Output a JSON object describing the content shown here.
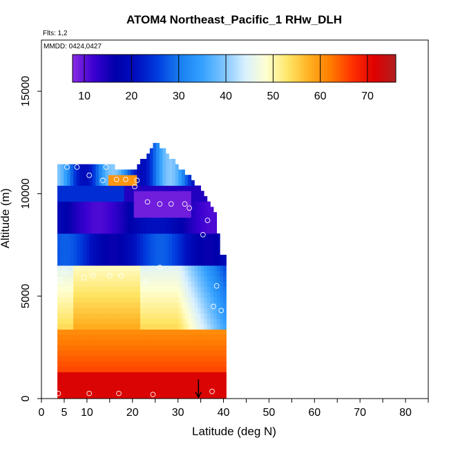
{
  "chart_data": {
    "type": "heatmap",
    "title": "ATOM4 Northeast_Pacific_1 RHw_DLH",
    "subtitle_flights": "Flts: 1,2",
    "subtitle_dates": "MMDD: 0424,0427",
    "xlabel": "Latitude (deg N)",
    "ylabel": "Altitude (m)",
    "xlim": [
      0,
      85
    ],
    "ylim": [
      0,
      17500
    ],
    "x_ticks": [
      0,
      5,
      10,
      20,
      30,
      40,
      50,
      60,
      70,
      80
    ],
    "x_minor_ticks": [
      15,
      25,
      35,
      45,
      55,
      65,
      75,
      85
    ],
    "y_ticks": [
      0,
      5000,
      10000,
      15000
    ],
    "colorbar": {
      "range": [
        7.5,
        76
      ],
      "ticks": [
        10,
        20,
        30,
        40,
        50,
        60,
        70
      ],
      "colors": [
        "#8a2be2",
        "#3a00d0",
        "#0000aa",
        "#0010c0",
        "#0040e0",
        "#1a7ff0",
        "#33a0ff",
        "#7cc4ff",
        "#d8f0ff",
        "#ffffd0",
        "#ffe566",
        "#ffb020",
        "#ff7a00",
        "#ff3000",
        "#e00000",
        "#b02020"
      ]
    },
    "value_min": 7.5,
    "value_max": 76,
    "shown_lat_range": [
      3.5,
      40
    ],
    "shown_alt_range": [
      0,
      12500
    ],
    "profiles": [
      {
        "lat": 4,
        "top": 11400
      },
      {
        "lat": 5,
        "top": 11400
      },
      {
        "lat": 10,
        "top": 11300
      },
      {
        "lat": 15,
        "top": 11200
      },
      {
        "lat": 20,
        "top": 11000
      },
      {
        "lat": 25,
        "top": 12400
      },
      {
        "lat": 30,
        "top": 11200
      },
      {
        "lat": 35,
        "top": 10000
      },
      {
        "lat": 38,
        "top": 8800
      },
      {
        "lat": 39,
        "top": 7000
      }
    ],
    "arrow_marker": {
      "lat": 34.5,
      "alt": 800
    },
    "circle_markers": [
      {
        "lat": 5.6,
        "alt": 11300
      },
      {
        "lat": 7.8,
        "alt": 11300
      },
      {
        "lat": 14.2,
        "alt": 11300
      },
      {
        "lat": 10.5,
        "alt": 10900
      },
      {
        "lat": 13.5,
        "alt": 10650
      },
      {
        "lat": 16.5,
        "alt": 10700
      },
      {
        "lat": 18.5,
        "alt": 10700
      },
      {
        "lat": 21.0,
        "alt": 10650
      },
      {
        "lat": 20.5,
        "alt": 10350
      },
      {
        "lat": 23.3,
        "alt": 9600
      },
      {
        "lat": 26.0,
        "alt": 9500
      },
      {
        "lat": 28.5,
        "alt": 9500
      },
      {
        "lat": 31.5,
        "alt": 9500
      },
      {
        "lat": 32.5,
        "alt": 9300
      },
      {
        "lat": 36.5,
        "alt": 8700
      },
      {
        "lat": 35.5,
        "alt": 8000
      },
      {
        "lat": 28.0,
        "alt": 12400
      },
      {
        "lat": 26.0,
        "alt": 6400
      },
      {
        "lat": 5.0,
        "alt": 6200
      },
      {
        "lat": 4.0,
        "alt": 5800
      },
      {
        "lat": 9.3,
        "alt": 5900
      },
      {
        "lat": 11.3,
        "alt": 6000
      },
      {
        "lat": 15.0,
        "alt": 6000
      },
      {
        "lat": 17.5,
        "alt": 6000
      },
      {
        "lat": 23.0,
        "alt": 5700
      },
      {
        "lat": 38.5,
        "alt": 5500
      },
      {
        "lat": 37.8,
        "alt": 4500
      },
      {
        "lat": 39.5,
        "alt": 4300
      },
      {
        "lat": 3.7,
        "alt": 250
      },
      {
        "lat": 10.5,
        "alt": 250
      },
      {
        "lat": 17.0,
        "alt": 250
      },
      {
        "lat": 24.5,
        "alt": 200
      },
      {
        "lat": 37.5,
        "alt": 350
      }
    ]
  }
}
